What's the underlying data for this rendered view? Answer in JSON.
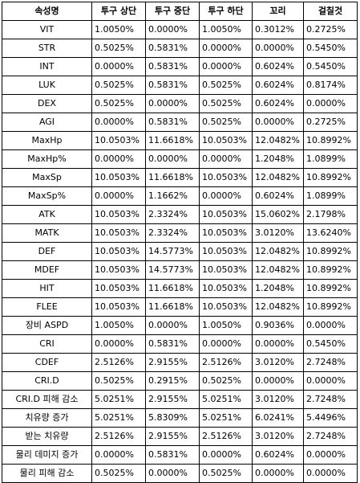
{
  "table": {
    "headers": [
      "속성명",
      "투구 상단",
      "투구 중단",
      "투구 하단",
      "꼬리",
      "걸칠것"
    ],
    "rows": [
      [
        "VIT",
        "1.0050%",
        "0.0000%",
        "1.0050%",
        "0.3012%",
        "0.2725%"
      ],
      [
        "STR",
        "0.5025%",
        "0.5831%",
        "0.0000%",
        "0.0000%",
        "0.5450%"
      ],
      [
        "INT",
        "0.0000%",
        "0.5831%",
        "0.0000%",
        "0.6024%",
        "0.5450%"
      ],
      [
        "LUK",
        "0.5025%",
        "0.5831%",
        "0.5025%",
        "0.6024%",
        "0.8174%"
      ],
      [
        "DEX",
        "0.5025%",
        "0.0000%",
        "0.5025%",
        "0.6024%",
        "0.0000%"
      ],
      [
        "AGI",
        "0.0000%",
        "0.5831%",
        "0.5025%",
        "0.0000%",
        "0.2725%"
      ],
      [
        "MaxHp",
        "10.0503%",
        "11.6618%",
        "10.0503%",
        "12.0482%",
        "10.8992%"
      ],
      [
        "MaxHp%",
        "0.0000%",
        "0.0000%",
        "0.0000%",
        "1.2048%",
        "1.0899%"
      ],
      [
        "MaxSp",
        "10.0503%",
        "11.6618%",
        "10.0503%",
        "12.0482%",
        "10.8992%"
      ],
      [
        "MaxSp%",
        "0.0000%",
        "1.1662%",
        "0.0000%",
        "0.6024%",
        "1.0899%"
      ],
      [
        "ATK",
        "10.0503%",
        "2.3324%",
        "10.0503%",
        "15.0602%",
        "2.1798%"
      ],
      [
        "MATK",
        "10.0503%",
        "2.3324%",
        "10.0503%",
        "3.0120%",
        "13.6240%"
      ],
      [
        "DEF",
        "10.0503%",
        "14.5773%",
        "10.0503%",
        "12.0482%",
        "10.8992%"
      ],
      [
        "MDEF",
        "10.0503%",
        "14.5773%",
        "10.0503%",
        "12.0482%",
        "10.8992%"
      ],
      [
        "HIT",
        "10.0503%",
        "11.6618%",
        "10.0503%",
        "1.2048%",
        "10.8992%"
      ],
      [
        "FLEE",
        "10.0503%",
        "11.6618%",
        "10.0503%",
        "12.0482%",
        "10.8992%"
      ],
      [
        "장비 ASPD",
        "1.0050%",
        "0.0000%",
        "1.0050%",
        "0.9036%",
        "0.0000%"
      ],
      [
        "CRI",
        "0.0000%",
        "0.5831%",
        "0.0000%",
        "0.0000%",
        "0.5450%"
      ],
      [
        "CDEF",
        "2.5126%",
        "2.9155%",
        "2.5126%",
        "3.0120%",
        "2.7248%"
      ],
      [
        "CRI.D",
        "0.5025%",
        "0.2915%",
        "0.5025%",
        "0.0000%",
        "0.0000%"
      ],
      [
        "CRI.D 피해 감소",
        "5.0251%",
        "2.9155%",
        "5.0251%",
        "3.0120%",
        "2.7248%"
      ],
      [
        "치유량 증가",
        "5.0251%",
        "5.8309%",
        "5.0251%",
        "6.0241%",
        "5.4496%"
      ],
      [
        "받는 치유량",
        "2.5126%",
        "2.9155%",
        "2.5126%",
        "3.0120%",
        "2.7248%"
      ],
      [
        "물리 데미지 증가",
        "0.0000%",
        "0.5831%",
        "0.0000%",
        "0.6024%",
        "0.0000%"
      ],
      [
        "물리 피해 감소",
        "0.5025%",
        "0.0000%",
        "0.5025%",
        "0.0000%",
        "0.0000%"
      ]
    ]
  }
}
